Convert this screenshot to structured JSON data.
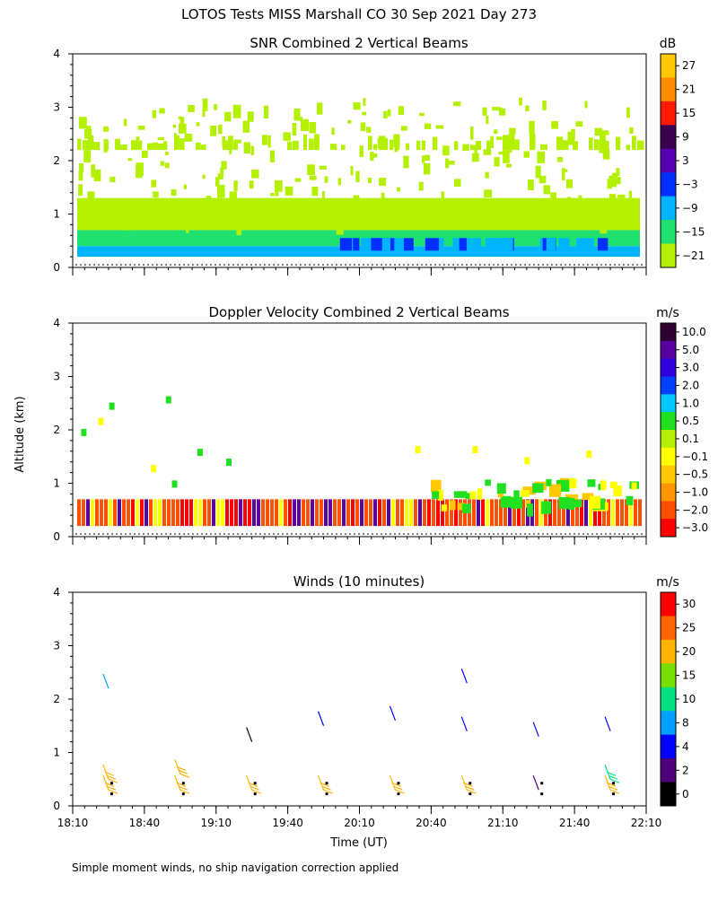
{
  "page_title": "LOTOS Tests MISS Marshall CO  30 Sep 2021 Day 273",
  "shared_ylabel": "Altitude (km)",
  "shared_xlabel": "Time (UT)",
  "footnote": "Simple moment winds, no ship navigation correction applied",
  "chart_data": [
    {
      "type": "heatmap",
      "title": "SNR Combined 2 Vertical Beams",
      "xlabel": "",
      "ylabel": "",
      "x_range": [
        "18:10",
        "22:10"
      ],
      "ylim": [
        0,
        4
      ],
      "y_ticks": [
        0,
        1,
        2,
        3,
        4
      ],
      "colorbar": {
        "unit": "dB",
        "ticks": [
          "27",
          "21",
          "15",
          "9",
          "3",
          "−3",
          "−9",
          "−15",
          "−21"
        ],
        "colors": [
          "#ffc800",
          "#ff8c00",
          "#ff1a00",
          "#3c0050",
          "#5a00b4",
          "#0030ff",
          "#00b4ff",
          "#20e070",
          "#b4f000"
        ]
      },
      "field_summary": [
        {
          "altitude_km": [
            0.2,
            0.4
          ],
          "value_dB": -9
        },
        {
          "altitude_km": [
            0.4,
            0.7
          ],
          "value_dB": -15
        },
        {
          "altitude_km": [
            0.7,
            1.3
          ],
          "value_dB": -21
        },
        {
          "altitude_km": [
            2.2,
            2.5
          ],
          "value_dB": -21
        }
      ]
    },
    {
      "type": "heatmap",
      "title": "Doppler Velocity Combined 2 Vertical Beams",
      "xlabel": "",
      "ylabel": "",
      "x_range": [
        "18:10",
        "22:10"
      ],
      "ylim": [
        0,
        4
      ],
      "y_ticks": [
        0,
        1,
        2,
        3,
        4
      ],
      "colorbar": {
        "unit": "m/s",
        "ticks": [
          "10.0",
          "5.0",
          "3.0",
          "2.0",
          "1.0",
          "0.5",
          "0.1",
          "−0.1",
          "−0.5",
          "−1.0",
          "−2.0",
          "−3.0"
        ],
        "colors": [
          "#300030",
          "#5a00a0",
          "#3000e0",
          "#0040ff",
          "#00c8ff",
          "#20e020",
          "#b4f000",
          "#ffff00",
          "#ffc800",
          "#ff9600",
          "#ff5000",
          "#ff0000"
        ]
      },
      "field_summary": [
        {
          "altitude_km": [
            0.2,
            0.7
          ],
          "value_m_s": -2.0
        },
        {
          "altitude_km": [
            0.7,
            1.0
          ],
          "value_m_s": 0.5
        }
      ]
    },
    {
      "type": "scatter",
      "title": "Winds (10 minutes)",
      "xlabel": "Time (UT)",
      "ylabel": "",
      "x_ticks": [
        "18:10",
        "18:40",
        "19:10",
        "19:40",
        "20:10",
        "20:40",
        "21:10",
        "21:40",
        "22:10"
      ],
      "ylim": [
        0,
        4
      ],
      "y_ticks": [
        0,
        1,
        2,
        3,
        4
      ],
      "colorbar": {
        "unit": "m/s",
        "ticks": [
          "30",
          "25",
          "20",
          "15",
          "10",
          "8",
          "4",
          "2",
          "0"
        ],
        "colors": [
          "#ff0000",
          "#ff6400",
          "#ffb400",
          "#78e000",
          "#00e080",
          "#00a0ff",
          "#0000ff",
          "#500078",
          "#000000"
        ]
      },
      "profile_times": [
        "18:25",
        "18:55",
        "19:25",
        "19:55",
        "20:25",
        "20:55",
        "21:25",
        "21:55"
      ],
      "barbs": [
        {
          "time": "18:25",
          "altitude_km": 0.3,
          "speed_m_s": 22
        },
        {
          "time": "18:25",
          "altitude_km": 0.5,
          "speed_m_s": 22
        },
        {
          "time": "18:25",
          "altitude_km": 2.2,
          "speed_m_s": 9
        },
        {
          "time": "18:55",
          "altitude_km": 0.3,
          "speed_m_s": 22
        },
        {
          "time": "18:55",
          "altitude_km": 0.6,
          "speed_m_s": 22
        },
        {
          "time": "19:25",
          "altitude_km": 0.3,
          "speed_m_s": 22
        },
        {
          "time": "19:25",
          "altitude_km": 1.2,
          "speed_m_s": 1
        },
        {
          "time": "19:55",
          "altitude_km": 0.3,
          "speed_m_s": 22
        },
        {
          "time": "19:55",
          "altitude_km": 1.5,
          "speed_m_s": 4
        },
        {
          "time": "20:25",
          "altitude_km": 0.3,
          "speed_m_s": 22
        },
        {
          "time": "20:25",
          "altitude_km": 1.6,
          "speed_m_s": 4
        },
        {
          "time": "20:55",
          "altitude_km": 0.3,
          "speed_m_s": 22
        },
        {
          "time": "20:55",
          "altitude_km": 1.4,
          "speed_m_s": 4
        },
        {
          "time": "20:55",
          "altitude_km": 2.3,
          "speed_m_s": 4
        },
        {
          "time": "21:25",
          "altitude_km": 0.3,
          "speed_m_s": 3
        },
        {
          "time": "21:25",
          "altitude_km": 1.3,
          "speed_m_s": 4
        },
        {
          "time": "21:55",
          "altitude_km": 0.3,
          "speed_m_s": 22
        },
        {
          "time": "21:55",
          "altitude_km": 0.5,
          "speed_m_s": 14
        },
        {
          "time": "21:55",
          "altitude_km": 1.4,
          "speed_m_s": 4
        }
      ]
    }
  ]
}
